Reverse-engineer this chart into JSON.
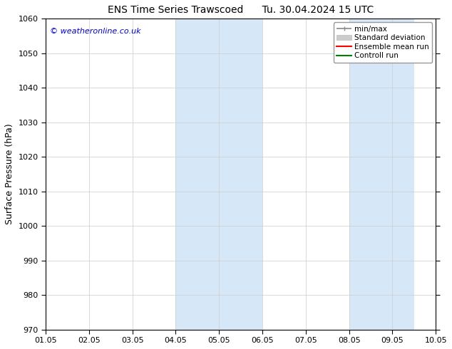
{
  "title": "ENS Time Series Trawscoed      Tu. 30.04.2024 15 UTC",
  "ylabel": "Surface Pressure (hPa)",
  "ylim": [
    970,
    1060
  ],
  "yticks": [
    970,
    980,
    990,
    1000,
    1010,
    1020,
    1030,
    1040,
    1050,
    1060
  ],
  "xtick_labels": [
    "01.05",
    "02.05",
    "03.05",
    "04.05",
    "05.05",
    "06.05",
    "07.05",
    "08.05",
    "09.05",
    "10.05"
  ],
  "xlim": [
    0,
    9
  ],
  "watermark": "© weatheronline.co.uk",
  "watermark_color": "#0000cc",
  "bg_color": "#ffffff",
  "plot_bg_color": "#ffffff",
  "shaded_bands": [
    {
      "xstart": 3.0,
      "xend": 5.0,
      "color": "#d6e8f7"
    },
    {
      "xstart": 7.0,
      "xend": 8.5,
      "color": "#d6e8f7"
    }
  ],
  "legend_entries": [
    {
      "label": "min/max",
      "color": "#aaaaaa",
      "lw": 1.5
    },
    {
      "label": "Standard deviation",
      "color": "#cccccc",
      "lw": 6
    },
    {
      "label": "Ensemble mean run",
      "color": "#ff0000",
      "lw": 1.5
    },
    {
      "label": "Controll run",
      "color": "#008000",
      "lw": 1.5
    }
  ],
  "grid_color": "#cccccc",
  "tick_label_fontsize": 8,
  "axis_label_fontsize": 9,
  "title_fontsize": 10,
  "figsize": [
    6.34,
    4.9
  ],
  "dpi": 100
}
